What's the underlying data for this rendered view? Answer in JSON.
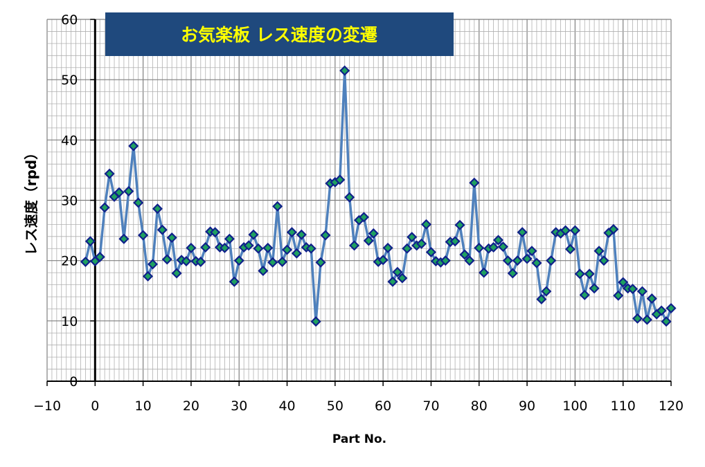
{
  "chart_data": {
    "type": "line",
    "title": "お気楽板  レス速度の変遷",
    "xlabel": "Part No.",
    "ylabel": "レス速度（rpd）",
    "xlim": [
      -10,
      120
    ],
    "ylim": [
      0,
      60
    ],
    "xticks": [
      -10,
      0,
      10,
      20,
      30,
      40,
      50,
      60,
      70,
      80,
      90,
      100,
      110,
      120
    ],
    "yticks": [
      0,
      10,
      20,
      30,
      40,
      50,
      60
    ],
    "grid": true,
    "legend": "none",
    "colors": {
      "line": "#4f81bd",
      "marker_fill": "#1fa060",
      "marker_edge": "#10208a",
      "title_bg": "#1f497d",
      "title_text": "#ffff00"
    },
    "series": [
      {
        "name": "レス速度",
        "x": [
          -2,
          -1,
          0,
          1,
          2,
          3,
          4,
          5,
          6,
          7,
          8,
          9,
          10,
          11,
          12,
          13,
          14,
          15,
          16,
          17,
          18,
          19,
          20,
          21,
          22,
          23,
          24,
          25,
          26,
          27,
          28,
          29,
          30,
          31,
          32,
          33,
          34,
          35,
          36,
          37,
          38,
          39,
          40,
          41,
          42,
          43,
          44,
          45,
          46,
          47,
          48,
          49,
          50,
          51,
          52,
          53,
          54,
          55,
          56,
          57,
          58,
          59,
          60,
          61,
          62,
          63,
          64,
          65,
          66,
          67,
          68,
          69,
          70,
          71,
          72,
          73,
          74,
          75,
          76,
          77,
          78,
          79,
          80,
          81,
          82,
          83,
          84,
          85,
          86,
          87,
          88,
          89,
          90,
          91,
          92,
          93,
          94,
          95,
          96,
          97,
          98,
          99,
          100,
          101,
          102,
          103,
          104,
          105,
          106,
          107,
          108,
          109,
          110,
          111,
          112,
          113,
          114,
          115,
          116,
          117,
          118,
          119,
          120
        ],
        "y": [
          19.8,
          23.2,
          19.9,
          20.6,
          28.8,
          34.4,
          30.6,
          31.3,
          23.6,
          31.5,
          39.0,
          29.6,
          24.2,
          17.4,
          19.4,
          28.6,
          25.1,
          20.2,
          23.8,
          17.9,
          20.1,
          19.9,
          22.1,
          19.9,
          19.8,
          22.2,
          24.8,
          24.7,
          22.2,
          22.1,
          23.6,
          16.5,
          20.0,
          22.2,
          22.5,
          24.3,
          22.0,
          18.3,
          22.1,
          19.7,
          29.0,
          19.8,
          21.8,
          24.7,
          21.2,
          24.3,
          22.2,
          22.0,
          9.9,
          19.7,
          24.2,
          32.8,
          33.0,
          33.4,
          51.5,
          30.5,
          22.5,
          26.7,
          27.2,
          23.3,
          24.5,
          19.8,
          20.1,
          22.1,
          16.5,
          18.1,
          17.1,
          22.0,
          23.9,
          22.5,
          22.8,
          26.0,
          21.4,
          19.9,
          19.7,
          20.0,
          23.1,
          23.2,
          25.9,
          21.0,
          20.0,
          32.9,
          22.1,
          18.0,
          22.0,
          22.2,
          23.4,
          22.3,
          20.0,
          17.9,
          20.0,
          24.7,
          20.3,
          21.6,
          19.6,
          13.6,
          14.9,
          20.0,
          24.7,
          24.5,
          25.0,
          21.9,
          25.0,
          17.8,
          14.3,
          17.8,
          15.4,
          21.6,
          20.0,
          24.6,
          25.2,
          14.2,
          16.4,
          15.4,
          15.3,
          10.4,
          14.9,
          10.2,
          13.7,
          11.1,
          11.7,
          9.9,
          12.1
        ]
      }
    ]
  }
}
